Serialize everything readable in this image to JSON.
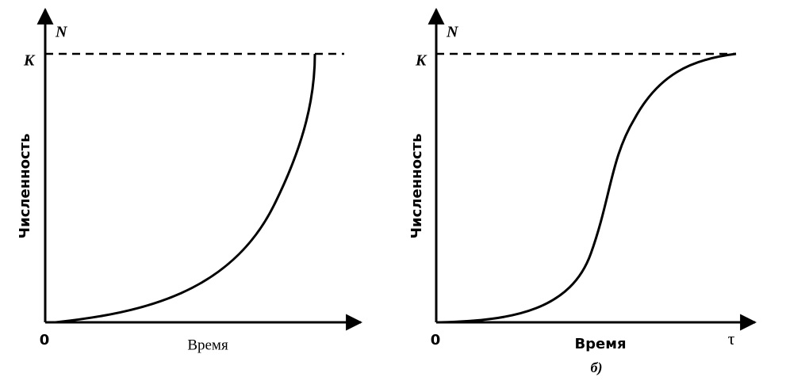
{
  "panels": [
    {
      "y_axis_symbol": "N",
      "capacity_label": "K",
      "y_axis_label": "Численность",
      "origin_label": "0",
      "x_axis_label": "Время"
    },
    {
      "y_axis_symbol": "N",
      "capacity_label": "K",
      "y_axis_label": "Численность",
      "origin_label": "0",
      "x_axis_label": "Время",
      "x_axis_end_label": "τ",
      "caption": "б)"
    }
  ]
}
